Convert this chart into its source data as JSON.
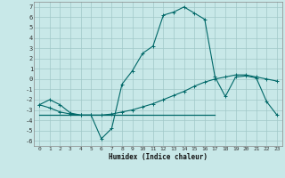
{
  "xlabel": "Humidex (Indice chaleur)",
  "background_color": "#c8e8e8",
  "grid_color": "#a0c8c8",
  "line_color": "#006868",
  "xlim": [
    -0.5,
    23.5
  ],
  "ylim": [
    -6.5,
    7.5
  ],
  "yticks": [
    -6,
    -5,
    -4,
    -3,
    -2,
    -1,
    0,
    1,
    2,
    3,
    4,
    5,
    6,
    7
  ],
  "xticks": [
    0,
    1,
    2,
    3,
    4,
    5,
    6,
    7,
    8,
    9,
    10,
    11,
    12,
    13,
    14,
    15,
    16,
    17,
    18,
    19,
    20,
    21,
    22,
    23
  ],
  "series1_x": [
    0,
    1,
    2,
    3,
    4,
    5,
    6,
    7,
    8,
    9,
    10,
    11,
    12,
    13,
    14,
    15,
    16,
    17,
    18,
    19,
    20,
    21,
    22,
    23
  ],
  "series1_y": [
    -2.5,
    -2.0,
    -2.5,
    -3.3,
    -3.5,
    -3.5,
    -5.8,
    -4.8,
    -0.5,
    0.8,
    2.5,
    3.2,
    6.2,
    6.5,
    7.0,
    6.4,
    5.8,
    0.2,
    -1.7,
    0.2,
    0.3,
    0.1,
    -2.2,
    -3.5
  ],
  "series2_x": [
    0,
    1,
    2,
    3,
    4,
    5,
    6,
    7,
    8,
    9,
    10,
    11,
    12,
    13,
    14,
    15,
    16,
    17,
    18,
    19,
    20,
    21,
    22,
    23
  ],
  "series2_y": [
    -2.5,
    -2.8,
    -3.2,
    -3.4,
    -3.5,
    -3.5,
    -3.5,
    -3.4,
    -3.2,
    -3.0,
    -2.7,
    -2.4,
    -2.0,
    -1.6,
    -1.2,
    -0.7,
    -0.3,
    0.0,
    0.2,
    0.4,
    0.4,
    0.2,
    0.0,
    -0.2
  ],
  "series3_x": [
    0,
    17
  ],
  "series3_y": [
    -3.5,
    -3.5
  ]
}
